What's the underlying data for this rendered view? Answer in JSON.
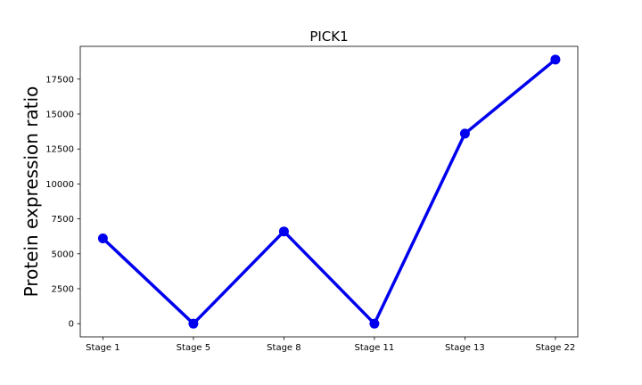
{
  "chart_data": {
    "type": "line",
    "title": "PICK1",
    "xlabel": "",
    "ylabel": "Protein expression ratio",
    "categories": [
      "Stage 1",
      "Stage 5",
      "Stage 8",
      "Stage 11",
      "Stage 13",
      "Stage 22"
    ],
    "series": [
      {
        "values": [
          6100,
          0,
          6600,
          0,
          13600,
          18900
        ],
        "color": "#0000ee"
      }
    ],
    "yticks": [
      0,
      2500,
      5000,
      7500,
      10000,
      12500,
      15000,
      17500
    ],
    "ytick_labels": [
      "0",
      "2500",
      "5000",
      "7500",
      "10000",
      "12500",
      "15000",
      "17500"
    ],
    "ylim": [
      -945,
      19845
    ],
    "grid": false,
    "legend": "none"
  }
}
